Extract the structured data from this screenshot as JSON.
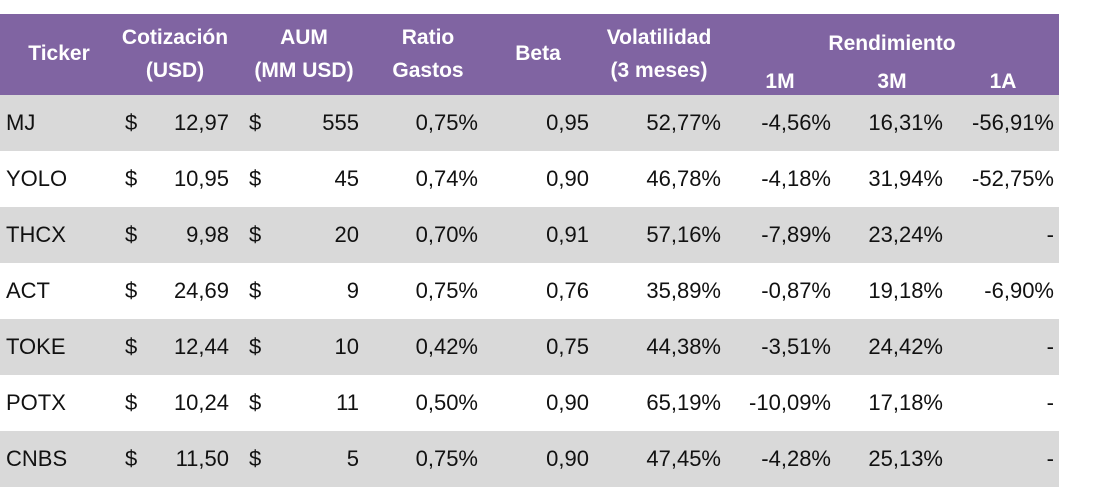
{
  "headers": {
    "ticker": "Ticker",
    "price_line1": "Cotización",
    "price_line2": "(USD)",
    "aum_line1": "AUM",
    "aum_line2": "(MM USD)",
    "expense_line1": "Ratio",
    "expense_line2": "Gastos",
    "beta": "Beta",
    "vol_line1": "Volatilidad",
    "vol_line2": "(3 meses)",
    "returns": "Rendimiento",
    "r1m": "1M",
    "r3m": "3M",
    "r1a": "1A"
  },
  "currency_symbol": "$",
  "colors": {
    "header_bg": "#8064a2",
    "header_text": "#ffffff",
    "stripe": "#d9d9d9"
  },
  "rows": [
    {
      "ticker": "MJ",
      "price": "12,97",
      "aum": "555",
      "expense": "0,75%",
      "beta": "0,95",
      "vol": "52,77%",
      "r1m": "-4,56%",
      "r3m": "16,31%",
      "r1a": "-56,91%"
    },
    {
      "ticker": "YOLO",
      "price": "10,95",
      "aum": "45",
      "expense": "0,74%",
      "beta": "0,90",
      "vol": "46,78%",
      "r1m": "-4,18%",
      "r3m": "31,94%",
      "r1a": "-52,75%"
    },
    {
      "ticker": "THCX",
      "price": "9,98",
      "aum": "20",
      "expense": "0,70%",
      "beta": "0,91",
      "vol": "57,16%",
      "r1m": "-7,89%",
      "r3m": "23,24%",
      "r1a": "-"
    },
    {
      "ticker": "ACT",
      "price": "24,69",
      "aum": "9",
      "expense": "0,75%",
      "beta": "0,76",
      "vol": "35,89%",
      "r1m": "-0,87%",
      "r3m": "19,18%",
      "r1a": "-6,90%"
    },
    {
      "ticker": "TOKE",
      "price": "12,44",
      "aum": "10",
      "expense": "0,42%",
      "beta": "0,75",
      "vol": "44,38%",
      "r1m": "-3,51%",
      "r3m": "24,42%",
      "r1a": "-"
    },
    {
      "ticker": "POTX",
      "price": "10,24",
      "aum": "11",
      "expense": "0,50%",
      "beta": "0,90",
      "vol": "65,19%",
      "r1m": "-10,09%",
      "r3m": "17,18%",
      "r1a": "-"
    },
    {
      "ticker": "CNBS",
      "price": "11,50",
      "aum": "5",
      "expense": "0,75%",
      "beta": "0,90",
      "vol": "47,45%",
      "r1m": "-4,28%",
      "r3m": "25,13%",
      "r1a": "-"
    }
  ]
}
